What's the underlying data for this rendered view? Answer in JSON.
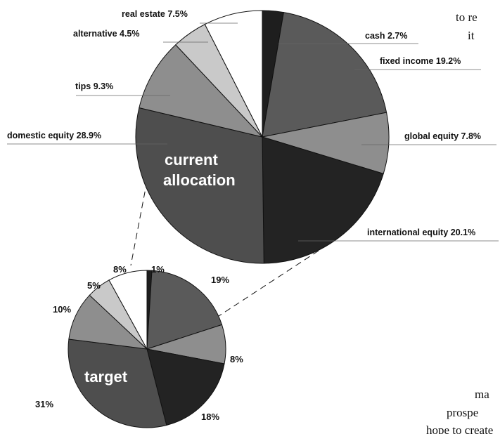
{
  "background_text": [
    "to re",
    "it",
    "ma",
    "prospe",
    "hope to create"
  ],
  "chart_data": [
    {
      "type": "pie",
      "title": "current allocation",
      "title_lines": [
        "current",
        "allocation"
      ],
      "slices": [
        {
          "label": "cash 2.7%",
          "value": 2.7,
          "color": "#1e1e1e"
        },
        {
          "label": "fixed income 19.2%",
          "value": 19.2,
          "color": "#5a5a5a"
        },
        {
          "label": "global equity 7.8%",
          "value": 7.8,
          "color": "#8e8e8e"
        },
        {
          "label": "international equity 20.1%",
          "value": 20.1,
          "color": "#232323"
        },
        {
          "label": "domestic equity 28.9%",
          "value": 28.9,
          "color": "#4e4e4e"
        },
        {
          "label": "tips 9.3%",
          "value": 9.3,
          "color": "#8e8e8e"
        },
        {
          "label": "alternative 4.5%",
          "value": 4.5,
          "color": "#c9c9c9"
        },
        {
          "label": "real estate 7.5%",
          "value": 7.5,
          "color": "#ffffff"
        }
      ]
    },
    {
      "type": "pie",
      "title": "target",
      "slices": [
        {
          "label": "1%",
          "value": 1,
          "color": "#1e1e1e"
        },
        {
          "label": "19%",
          "value": 19,
          "color": "#5a5a5a"
        },
        {
          "label": "8%",
          "value": 8,
          "color": "#8e8e8e"
        },
        {
          "label": "18%",
          "value": 18,
          "color": "#232323"
        },
        {
          "label": "31%",
          "value": 31,
          "color": "#4e4e4e"
        },
        {
          "label": "10%",
          "value": 10,
          "color": "#8e8e8e"
        },
        {
          "label": "5%",
          "value": 5,
          "color": "#c9c9c9"
        },
        {
          "label": "8%",
          "value": 8,
          "color": "#ffffff"
        }
      ]
    }
  ]
}
